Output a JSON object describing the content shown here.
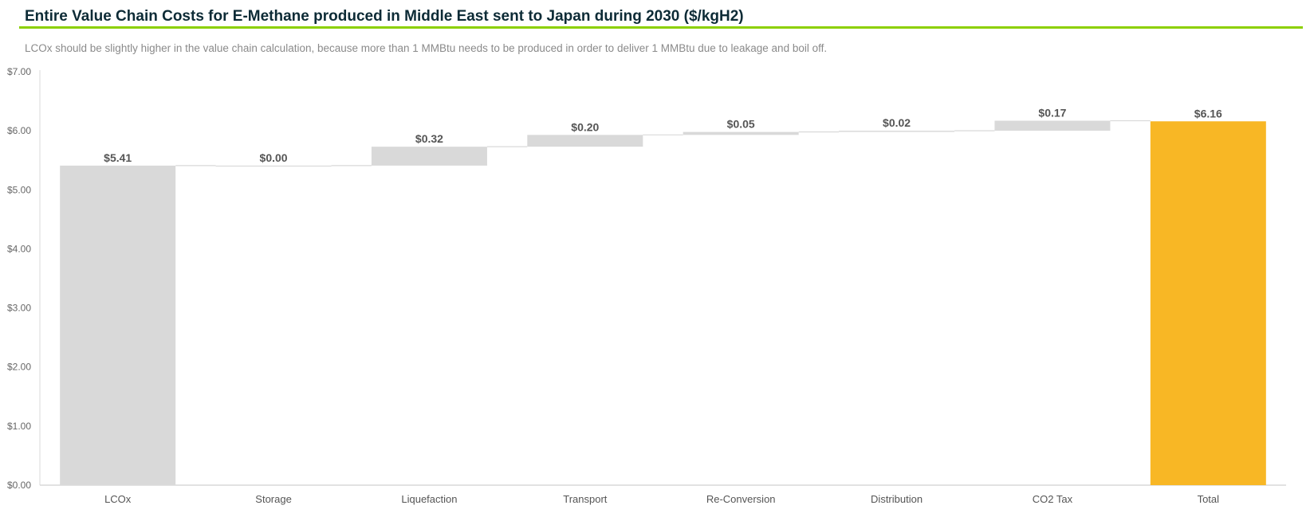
{
  "title": "Entire Value Chain Costs for E-Methane produced in Middle East sent to Japan during 2030 ($/kgH2)",
  "subtitle": "LCOx should be slightly higher in the value chain calculation, because more than 1 MMBtu needs to be produced in order to deliver 1 MMBtu due to leakage and boil off.",
  "chart_data": {
    "type": "bar",
    "subtype": "waterfall",
    "title": "Entire Value Chain Costs for E-Methane produced in Middle East sent to Japan during 2030 ($/kgH2)",
    "xlabel": "",
    "ylabel": "",
    "ylim": [
      0,
      7
    ],
    "yticks": [
      "$0.00",
      "$1.00",
      "$2.00",
      "$3.00",
      "$4.00",
      "$5.00",
      "$6.00",
      "$7.00"
    ],
    "grid": false,
    "categories": [
      "LCOx",
      "Storage",
      "Liquefaction",
      "Transport",
      "Re-Conversion",
      "Distribution",
      "CO2 Tax",
      "Total"
    ],
    "values": [
      5.41,
      0.0,
      0.32,
      0.2,
      0.05,
      0.02,
      0.17,
      6.16
    ],
    "data_labels": [
      "$5.41",
      "$0.00",
      "$0.32",
      "$0.20",
      "$0.05",
      "$0.02",
      "$0.17",
      "$6.16"
    ],
    "total_index": 7,
    "colors": {
      "step": "#d9d9d9",
      "total": "#f8b725",
      "connector": "#d9d9d9",
      "axis": "#d9d9d9"
    }
  }
}
